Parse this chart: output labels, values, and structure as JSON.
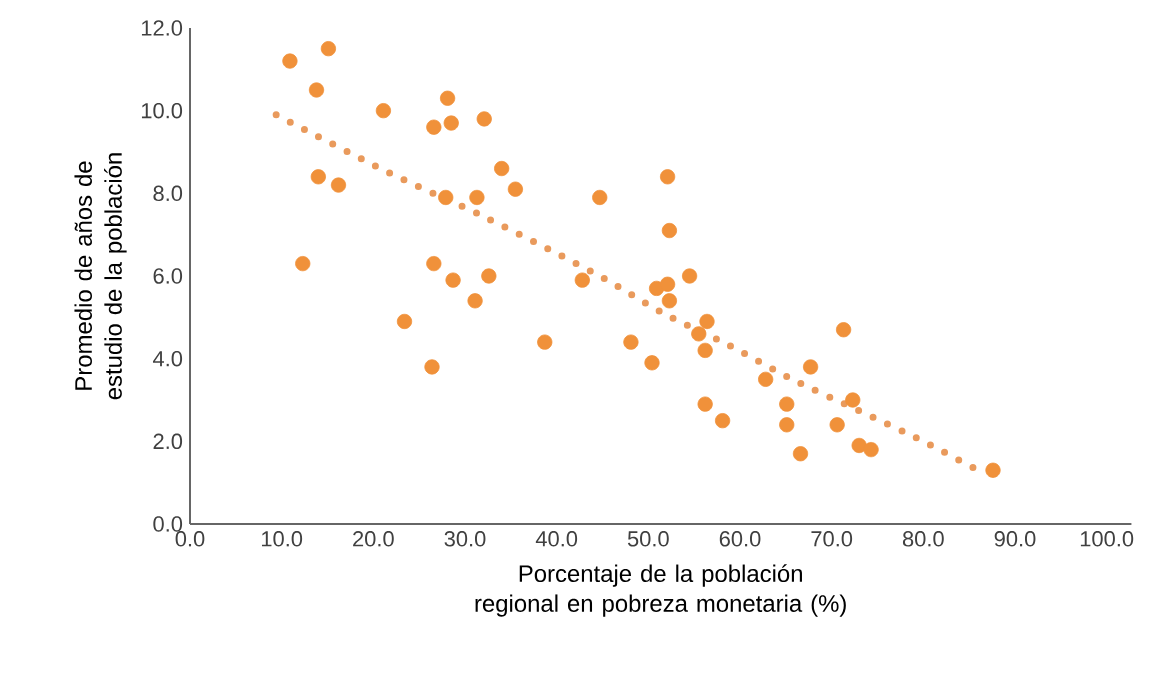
{
  "chart_data": {
    "type": "scatter",
    "xlabel": "Porcentaje de la población regional en pobreza monetaria (%)",
    "ylabel": "Promedio de años de estudio de la población",
    "xlim": [
      0,
      102.7
    ],
    "ylim": [
      0,
      12
    ],
    "xticks": [
      {
        "value": 0,
        "label": "0.0"
      },
      {
        "value": 10,
        "label": "10.0"
      },
      {
        "value": 20,
        "label": "20.0"
      },
      {
        "value": 30,
        "label": "30.0"
      },
      {
        "value": 40,
        "label": "40.0"
      },
      {
        "value": 50,
        "label": "50.0"
      },
      {
        "value": 60,
        "label": "60.0"
      },
      {
        "value": 70,
        "label": "70.0"
      },
      {
        "value": 80,
        "label": "80.0"
      },
      {
        "value": 90,
        "label": "90.0"
      },
      {
        "value": 100,
        "label": "100.0"
      }
    ],
    "yticks": [
      {
        "value": 0,
        "label": "0.0"
      },
      {
        "value": 2,
        "label": "2.0"
      },
      {
        "value": 4,
        "label": "4.0"
      },
      {
        "value": 6,
        "label": "6.0"
      },
      {
        "value": 8,
        "label": "8.0"
      },
      {
        "value": 10,
        "label": "10.0"
      },
      {
        "value": 12,
        "label": "12.0"
      }
    ],
    "grid": false,
    "series": [
      {
        "type": "scatter",
        "marker": "circle",
        "color": "#f0913a",
        "x": [
          10.9,
          15.1,
          13.8,
          21.1,
          28.1,
          26.6,
          28.5,
          32.1,
          14.0,
          16.2,
          34.0,
          35.5,
          27.9,
          31.3,
          44.7,
          12.3,
          26.6,
          28.7,
          32.6,
          31.1,
          23.4,
          26.4,
          38.7,
          42.8,
          48.1,
          50.4,
          52.1,
          52.3,
          54.5,
          50.9,
          52.1,
          52.3,
          56.4,
          55.5,
          56.2,
          56.2,
          58.1,
          62.8,
          65.1,
          65.1,
          66.6,
          67.7,
          71.3,
          72.3,
          70.6,
          73.0,
          74.3,
          87.6
        ],
        "values": [
          11.2,
          11.5,
          10.5,
          10.0,
          10.3,
          9.6,
          9.7,
          9.8,
          8.4,
          8.2,
          8.6,
          8.1,
          7.9,
          7.9,
          7.9,
          6.3,
          6.3,
          5.9,
          6.0,
          5.4,
          4.9,
          3.8,
          4.4,
          5.9,
          4.4,
          3.9,
          8.4,
          7.1,
          6.0,
          5.7,
          5.8,
          5.4,
          4.9,
          4.6,
          4.2,
          2.9,
          2.5,
          3.5,
          2.9,
          2.4,
          1.7,
          3.8,
          4.7,
          3.0,
          2.4,
          1.9,
          1.8,
          1.3
        ]
      },
      {
        "type": "line",
        "marker": "none",
        "line_style": "dotted",
        "color": "#e99a5c",
        "x": [
          9.4,
          21.7,
          32.4,
          44.7,
          51.6,
          58.6,
          65.7,
          72.9,
          80.0,
          86.8
        ],
        "values": [
          9.9,
          8.5,
          7.4,
          6.0,
          5.1,
          4.35,
          3.5,
          2.75,
          2.0,
          1.2
        ]
      }
    ]
  }
}
